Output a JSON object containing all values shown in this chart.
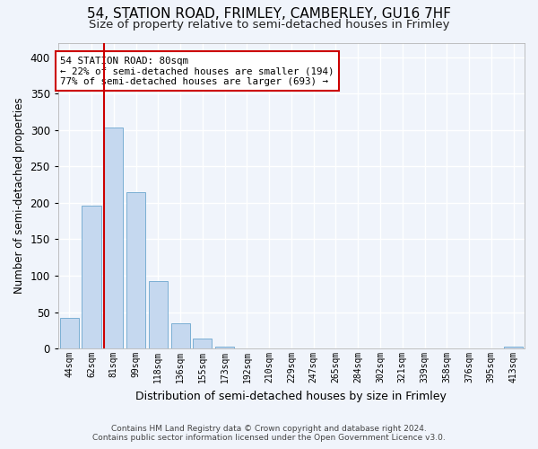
{
  "title": "54, STATION ROAD, FRIMLEY, CAMBERLEY, GU16 7HF",
  "subtitle": "Size of property relative to semi-detached houses in Frimley",
  "xlabel": "Distribution of semi-detached houses by size in Frimley",
  "ylabel": "Number of semi-detached properties",
  "categories": [
    "44sqm",
    "62sqm",
    "81sqm",
    "99sqm",
    "118sqm",
    "136sqm",
    "155sqm",
    "173sqm",
    "192sqm",
    "210sqm",
    "229sqm",
    "247sqm",
    "265sqm",
    "284sqm",
    "302sqm",
    "321sqm",
    "339sqm",
    "358sqm",
    "376sqm",
    "395sqm",
    "413sqm"
  ],
  "values": [
    42,
    196,
    304,
    215,
    93,
    35,
    14,
    3,
    0,
    0,
    0,
    0,
    0,
    0,
    0,
    0,
    0,
    0,
    0,
    0,
    3
  ],
  "bar_color": "#c5d8ef",
  "bar_edge_color": "#7bafd4",
  "highlight_color": "#cc0000",
  "annotation_title": "54 STATION ROAD: 80sqm",
  "annotation_line1": "← 22% of semi-detached houses are smaller (194)",
  "annotation_line2": "77% of semi-detached houses are larger (693) →",
  "annotation_box_color": "#cc0000",
  "footer_line1": "Contains HM Land Registry data © Crown copyright and database right 2024.",
  "footer_line2": "Contains public sector information licensed under the Open Government Licence v3.0.",
  "ylim": [
    0,
    420
  ],
  "yticks": [
    0,
    50,
    100,
    150,
    200,
    250,
    300,
    350,
    400
  ],
  "bg_color": "#f0f4fb",
  "plot_bg_color": "#f0f4fb",
  "grid_color": "#ffffff",
  "title_fontsize": 11,
  "subtitle_fontsize": 9.5,
  "footer_fontsize": 6.5
}
